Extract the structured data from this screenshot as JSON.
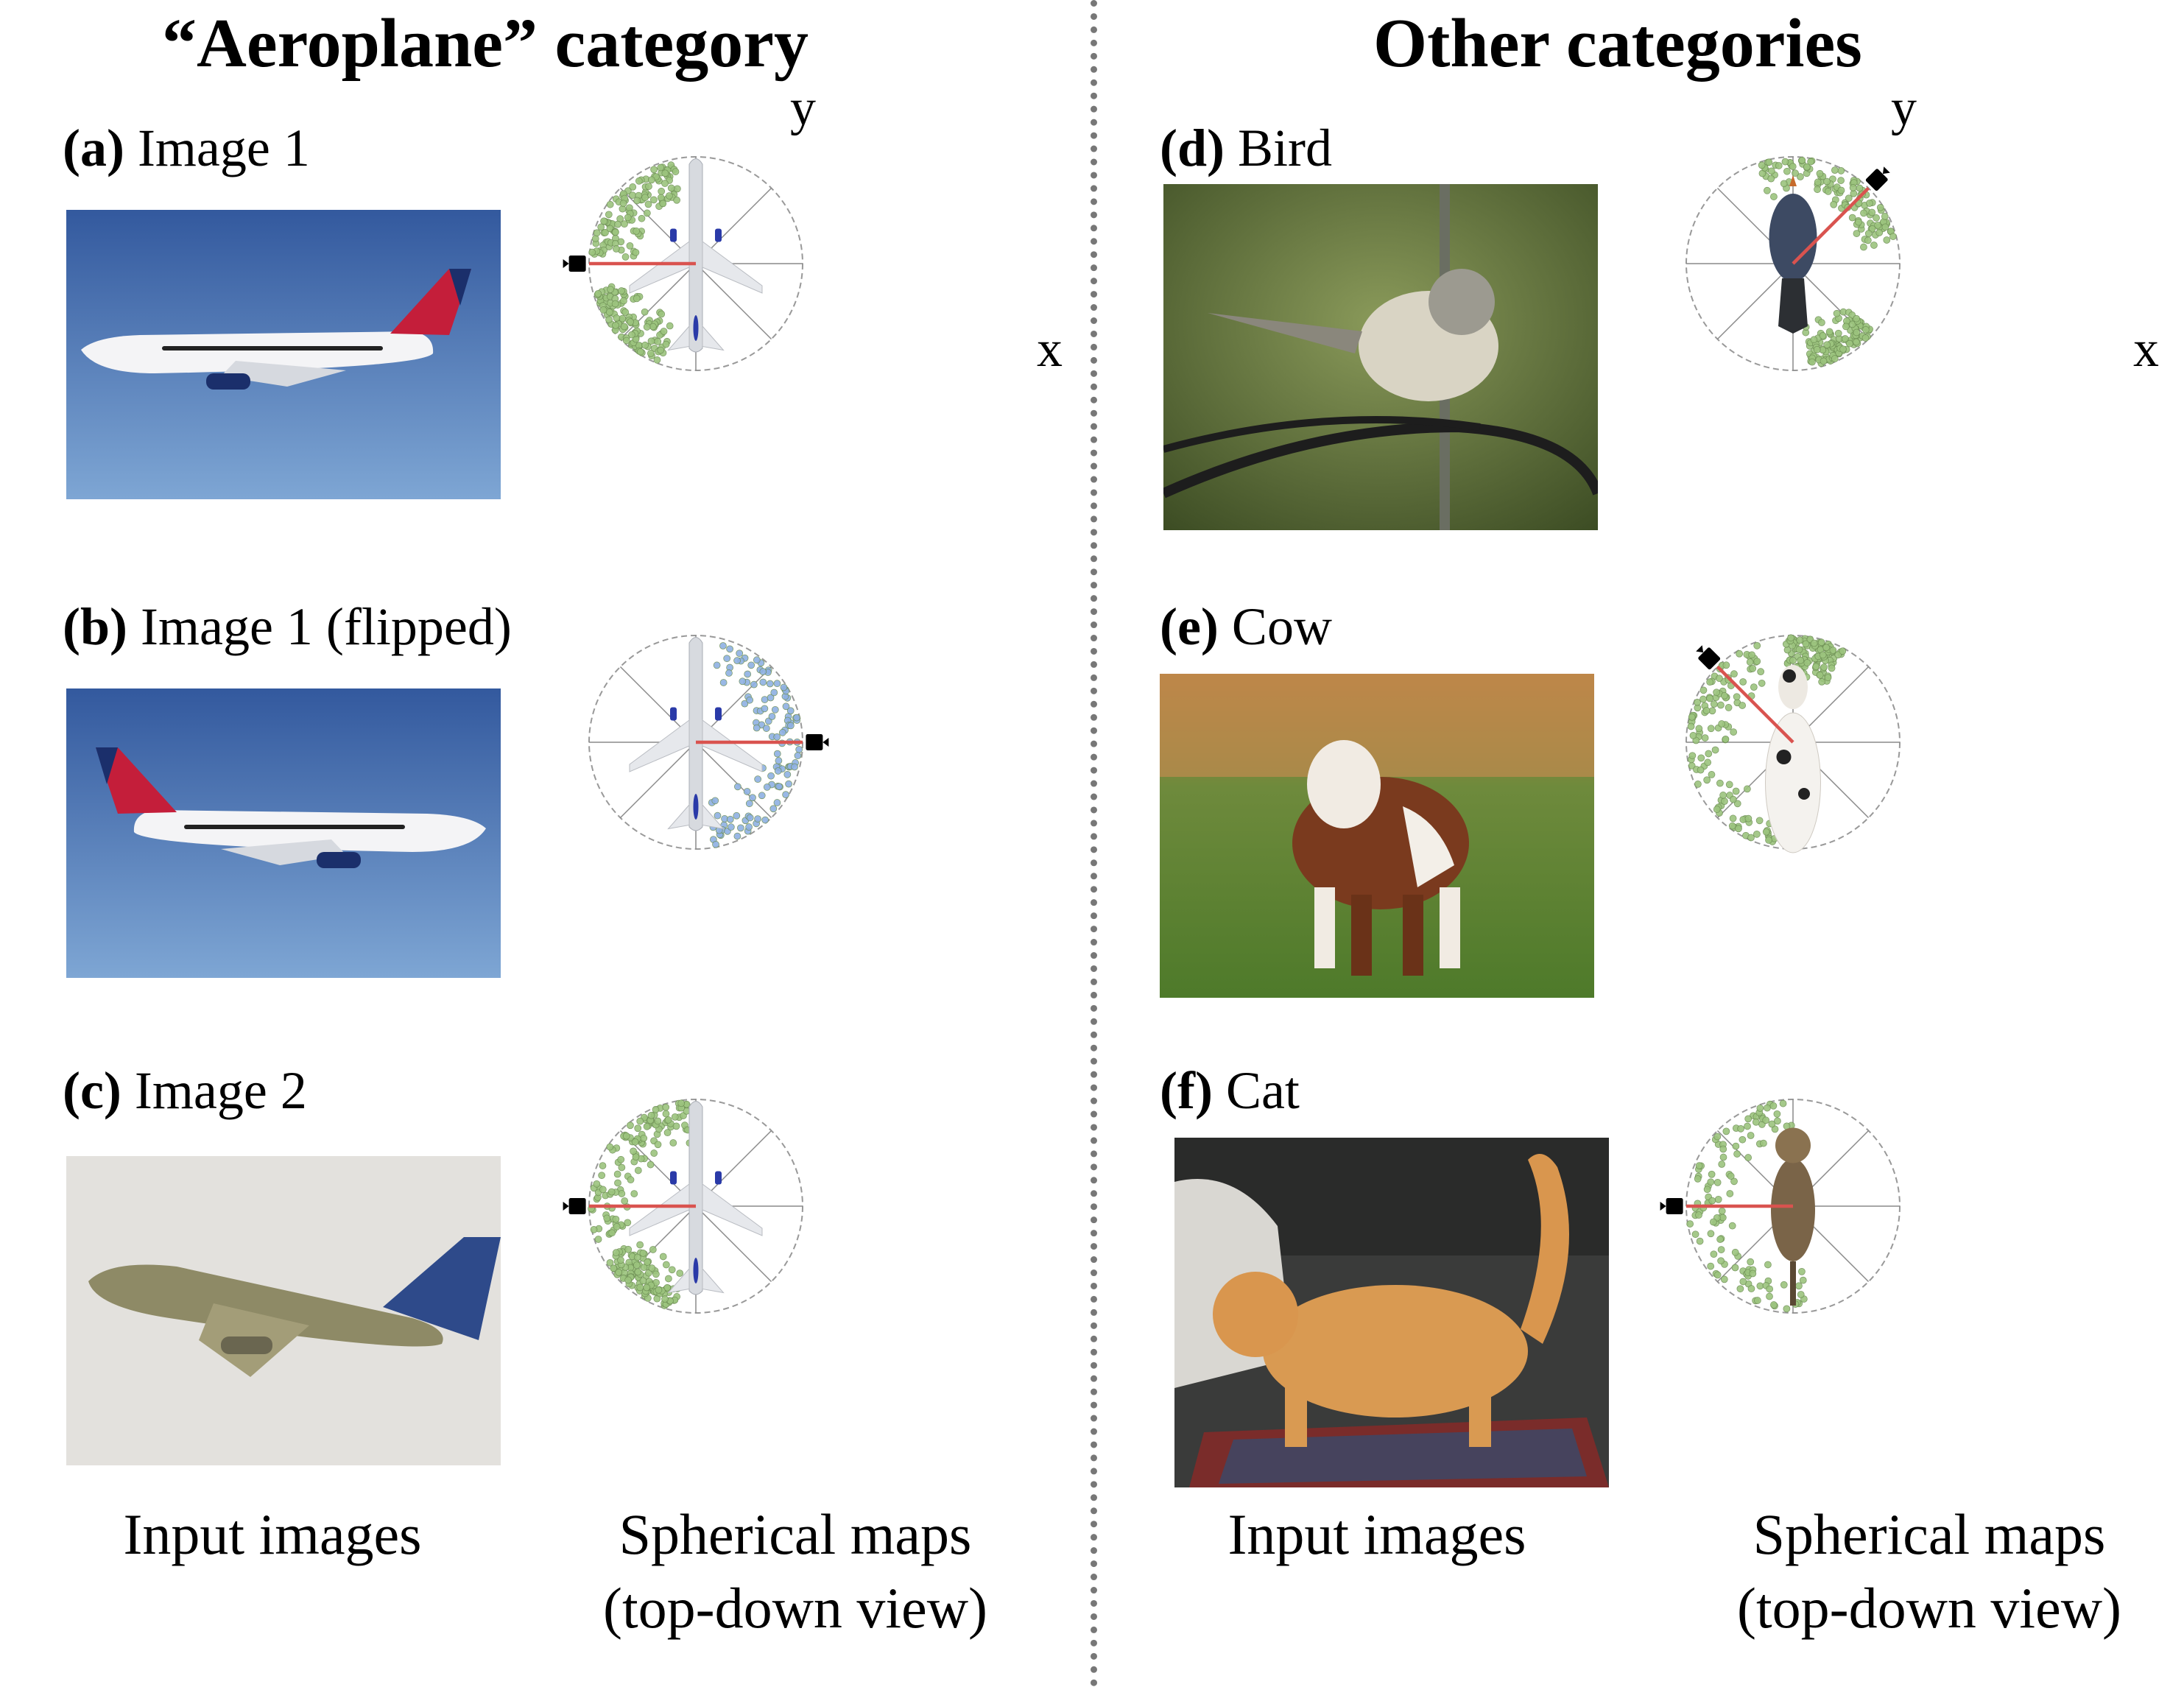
{
  "headings": {
    "left": "“Aeroplane” category",
    "right": "Other categories"
  },
  "axes": {
    "x": "x",
    "y": "y"
  },
  "panels": [
    {
      "id": "a",
      "tag": "(a)",
      "title": "Image 1",
      "photo": "aeroplane-photo",
      "map_color": "#9cc47e",
      "map_subject": "aeroplane",
      "camera": {
        "angle_deg": 180
      }
    },
    {
      "id": "b",
      "tag": "(b)",
      "title": "Image 1 (flipped)",
      "photo": "aeroplane-flipped-photo",
      "map_color": "#8fb1e3",
      "map_subject": "aeroplane",
      "camera": {
        "angle_deg": 0
      }
    },
    {
      "id": "c",
      "tag": "(c)",
      "title": "Image 2",
      "photo": "aeroplane-photo-2",
      "map_color": "#9cc47e",
      "map_subject": "aeroplane",
      "camera": {
        "angle_deg": 180
      }
    },
    {
      "id": "d",
      "tag": "(d)",
      "title": "Bird",
      "photo": "bird-photo",
      "map_color": "#9cc47e",
      "map_subject": "bird",
      "camera": {
        "angle_deg": 45
      }
    },
    {
      "id": "e",
      "tag": "(e)",
      "title": "Cow",
      "photo": "cow-photo",
      "map_color": "#9cc47e",
      "map_subject": "cow",
      "camera": {
        "angle_deg": 135
      }
    },
    {
      "id": "f",
      "tag": "(f)",
      "title": "Cat",
      "photo": "cat-photo",
      "map_color": "#9cc47e",
      "map_subject": "cat",
      "camera": {
        "angle_deg": 180
      }
    }
  ],
  "captions": {
    "input_images": "Input images",
    "spherical_maps_line1": "Spherical maps",
    "spherical_maps_line2": "(top-down view)"
  },
  "colors": {
    "camera_ray": "#d9534f",
    "grid": "#8a8a8a",
    "circle": "#999999"
  }
}
